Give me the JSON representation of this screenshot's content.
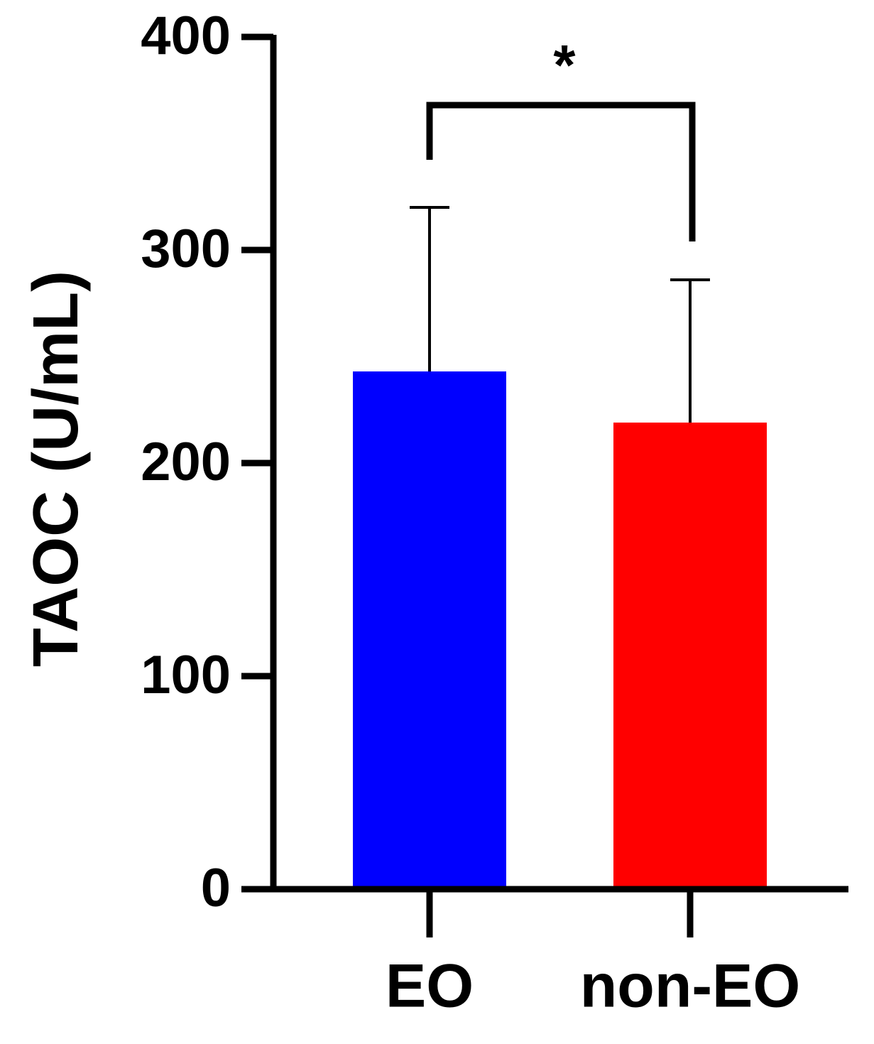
{
  "chart_data": {
    "type": "bar",
    "y_label": "TAOC (U/mL)",
    "categories": [
      "EO",
      "non-EO"
    ],
    "values": [
      243,
      219
    ],
    "errors": [
      77,
      67
    ],
    "colors": [
      "#0000ff",
      "#ff0000"
    ],
    "ylim": [
      0,
      400
    ],
    "yticks": [
      0,
      100,
      200,
      300,
      400
    ],
    "annotation": "*"
  }
}
